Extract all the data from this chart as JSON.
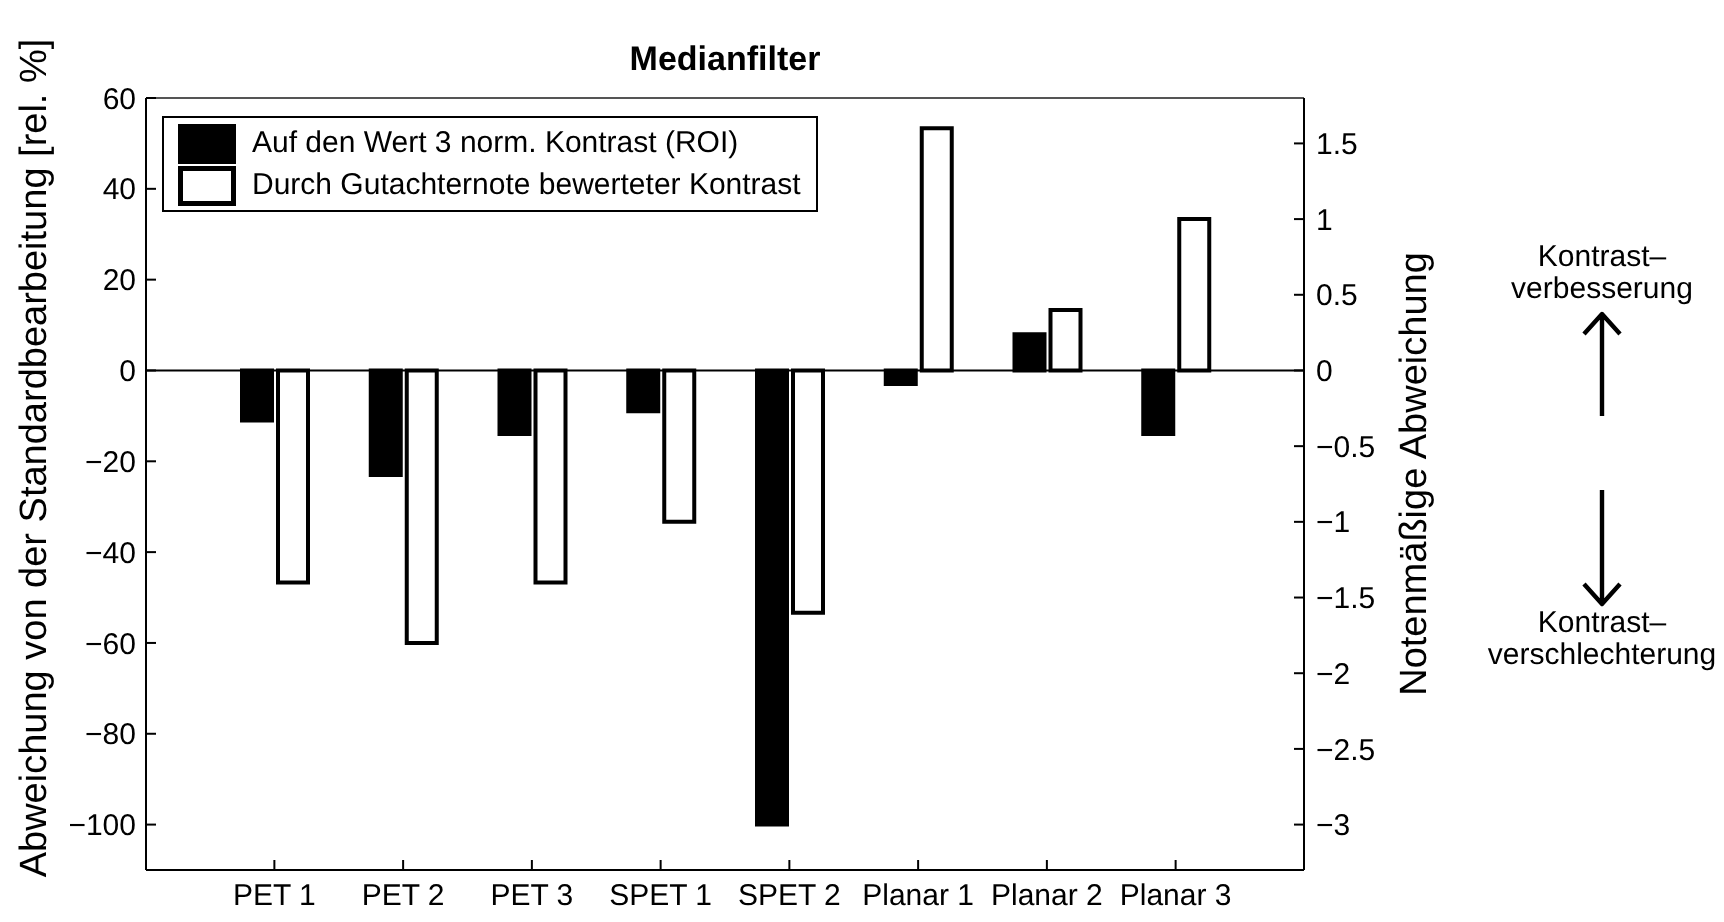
{
  "chart_data": {
    "type": "bar",
    "title": "Medianfilter",
    "ylabel": "Abweichung von der Standardbearbeitung [rel. %]",
    "y2label": "Notenmäßige Abweichung",
    "categories": [
      "PET 1",
      "PET 2",
      "PET 3",
      "SPET 1",
      "SPET 2",
      "Planar 1",
      "Planar 2",
      "Planar 3"
    ],
    "series": [
      {
        "name": "Auf den Wert 3 norm. Kontrast (ROI)",
        "color": "#000000",
        "values": [
          -11,
          -23,
          -14,
          -9,
          -100,
          -3,
          8,
          -14
        ]
      },
      {
        "name": "Durch Gutachternote bewerteter Kontrast",
        "color": "#ffffff",
        "axis": "y2",
        "values": [
          -1.4,
          -1.8,
          -1.4,
          -1,
          -1.6,
          1.6,
          0.4,
          1
        ]
      }
    ],
    "ylim": [
      -110,
      60
    ],
    "yticks": [
      -100,
      -80,
      -60,
      -40,
      -20,
      0,
      20,
      40,
      60
    ],
    "y2lim": [
      -3.3,
      1.8
    ],
    "y2ticks": [
      -3,
      -2.5,
      -2,
      -1.5,
      -1,
      -0.5,
      0,
      0.5,
      1,
      1.5
    ],
    "ref_lines": [
      {
        "axis": "y",
        "value": 0
      }
    ],
    "legend": "top left",
    "annotations": [
      "Kontrast–\nverbesserung",
      "Kontrast–\nverschlechterung"
    ]
  }
}
